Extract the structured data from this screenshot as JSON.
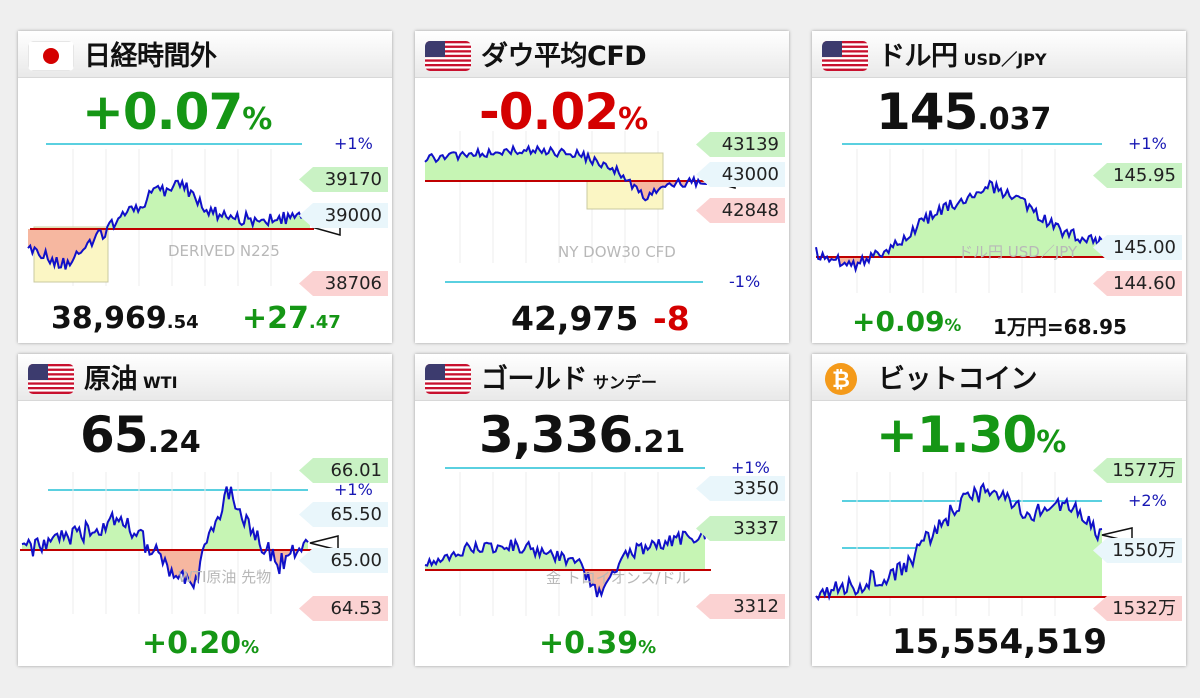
{
  "colors": {
    "up": "#159615",
    "down": "#d40000",
    "line": "#1010c8",
    "fill_up": "#c6f5b4",
    "fill_down": "#f6b7a0",
    "ref": "#c00000",
    "pct": "#5ad0e0"
  },
  "nikkei": {
    "title": "日経時間外",
    "change_int": "+0.07",
    "change_unit": "%",
    "plus1": "+1%",
    "tag_high": "39170",
    "tag_mid": "39000",
    "tag_low": "38706",
    "watermark": "DERIVED N225",
    "price_int": "38,969",
    "price_frac": ".54",
    "diff_int": "+27",
    "diff_frac": ".47"
  },
  "dow": {
    "title": "ダウ平均CFD",
    "change_int": "-0.02",
    "change_unit": "%",
    "minus1": "-1%",
    "tag_high": "43139",
    "tag_mid": "43000",
    "tag_low": "42848",
    "watermark": "NY DOW30 CFD",
    "price": "42,975",
    "diff": "-8"
  },
  "usdjpy": {
    "title": "ドル円",
    "subtitle": "USD／JPY",
    "price_int": "145",
    "price_frac": ".037",
    "plus1": "+1%",
    "tag_high": "145.95",
    "tag_mid": "145.00",
    "tag_low": "144.60",
    "watermark": "ドル円 USD／JPY",
    "change": "+0.09",
    "change_unit": "%",
    "extra": "1万円=68.95"
  },
  "wti": {
    "title": "原油",
    "subtitle": "WTI",
    "price_int": "65",
    "price_frac": ".24",
    "plus1": "+1%",
    "tag_high": "66.01",
    "tag_mid1": "65.50",
    "tag_mid2": "65.00",
    "tag_low": "64.53",
    "watermark": "WTI原油 先物",
    "change": "+0.20",
    "change_unit": "%"
  },
  "gold": {
    "title": "ゴールド",
    "subtitle": "サンデー",
    "price_int": "3,336",
    "price_frac": ".21",
    "plus1": "+1%",
    "tag_high": "3350",
    "tag_mid": "3337",
    "tag_low": "3312",
    "watermark": "金 トロイオンス/ドル",
    "change": "+0.39",
    "change_unit": "%"
  },
  "bitcoin": {
    "title": "ビットコイン",
    "change_int": "+1.30",
    "change_unit": "%",
    "plus2": "+2%",
    "tag_high": "1577万",
    "tag_mid": "1550万",
    "tag_low": "1532万",
    "price": "15,554,519"
  }
}
